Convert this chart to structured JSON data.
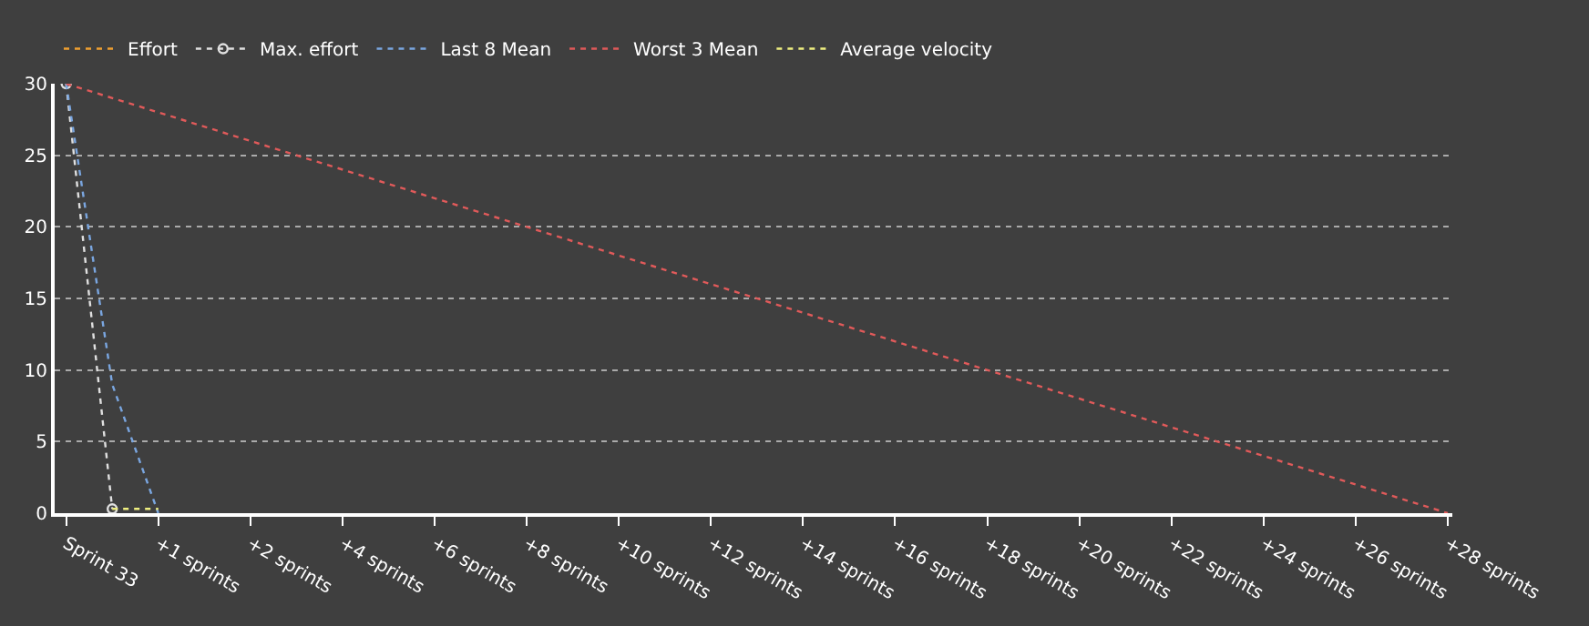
{
  "chart_data": {
    "type": "line",
    "categories": [
      "Sprint 33",
      null,
      "+1 sprints",
      null,
      "+2 sprints",
      null,
      "+4 sprints",
      null,
      "+6 sprints",
      null,
      "+8 sprints",
      null,
      "+10 sprints",
      null,
      "+12 sprints",
      null,
      "+14 sprints",
      null,
      "+16 sprints",
      null,
      "+18 sprints",
      null,
      "+20 sprints",
      null,
      "+22 sprints",
      null,
      "+24 sprints",
      null,
      "+26 sprints",
      null,
      "+28 sprints"
    ],
    "series": [
      {
        "name": "Effort",
        "color": "#f0a030",
        "values": [
          null,
          null,
          null,
          null,
          null,
          null,
          null,
          null,
          null,
          null,
          null,
          null,
          null,
          null,
          null,
          null,
          null,
          null,
          null,
          null,
          null,
          null,
          null,
          null,
          null,
          null,
          null,
          null,
          null,
          null,
          null
        ]
      },
      {
        "name": "Max. effort",
        "color": "#e0e0e0",
        "values": [
          30,
          0.3,
          null,
          null,
          null,
          null,
          null,
          null,
          null,
          null,
          null,
          null,
          null,
          null,
          null,
          null,
          null,
          null,
          null,
          null,
          null,
          null,
          null,
          null,
          null,
          null,
          null,
          null,
          null,
          null,
          null
        ],
        "marker": "circle"
      },
      {
        "name": "Last 8 Mean",
        "color": "#7aa6e0",
        "values": [
          30,
          9,
          0,
          null,
          null,
          null,
          null,
          null,
          null,
          null,
          null,
          null,
          null,
          null,
          null,
          null,
          null,
          null,
          null,
          null,
          null,
          null,
          null,
          null,
          null,
          null,
          null,
          null,
          null,
          null,
          null
        ]
      },
      {
        "name": "Worst 3 Mean",
        "color": "#e05a5a",
        "values": [
          30,
          null,
          null,
          null,
          null,
          null,
          null,
          null,
          null,
          null,
          null,
          null,
          null,
          null,
          null,
          null,
          null,
          null,
          null,
          null,
          null,
          null,
          null,
          null,
          null,
          null,
          null,
          null,
          null,
          null,
          0
        ]
      },
      {
        "name": "Average velocity",
        "color": "#f0f080",
        "values": [
          null,
          0.3,
          0.3,
          null,
          null,
          null,
          null,
          null,
          null,
          null,
          null,
          null,
          null,
          null,
          null,
          null,
          null,
          null,
          null,
          null,
          null,
          null,
          null,
          null,
          null,
          null,
          null,
          null,
          null,
          null,
          null
        ]
      }
    ],
    "ylim": [
      0,
      30
    ],
    "yticks": [
      0,
      5,
      10,
      15,
      20,
      25,
      30
    ],
    "grid": "y",
    "legend": "top left",
    "line_style": "dotted",
    "marker": "none"
  }
}
